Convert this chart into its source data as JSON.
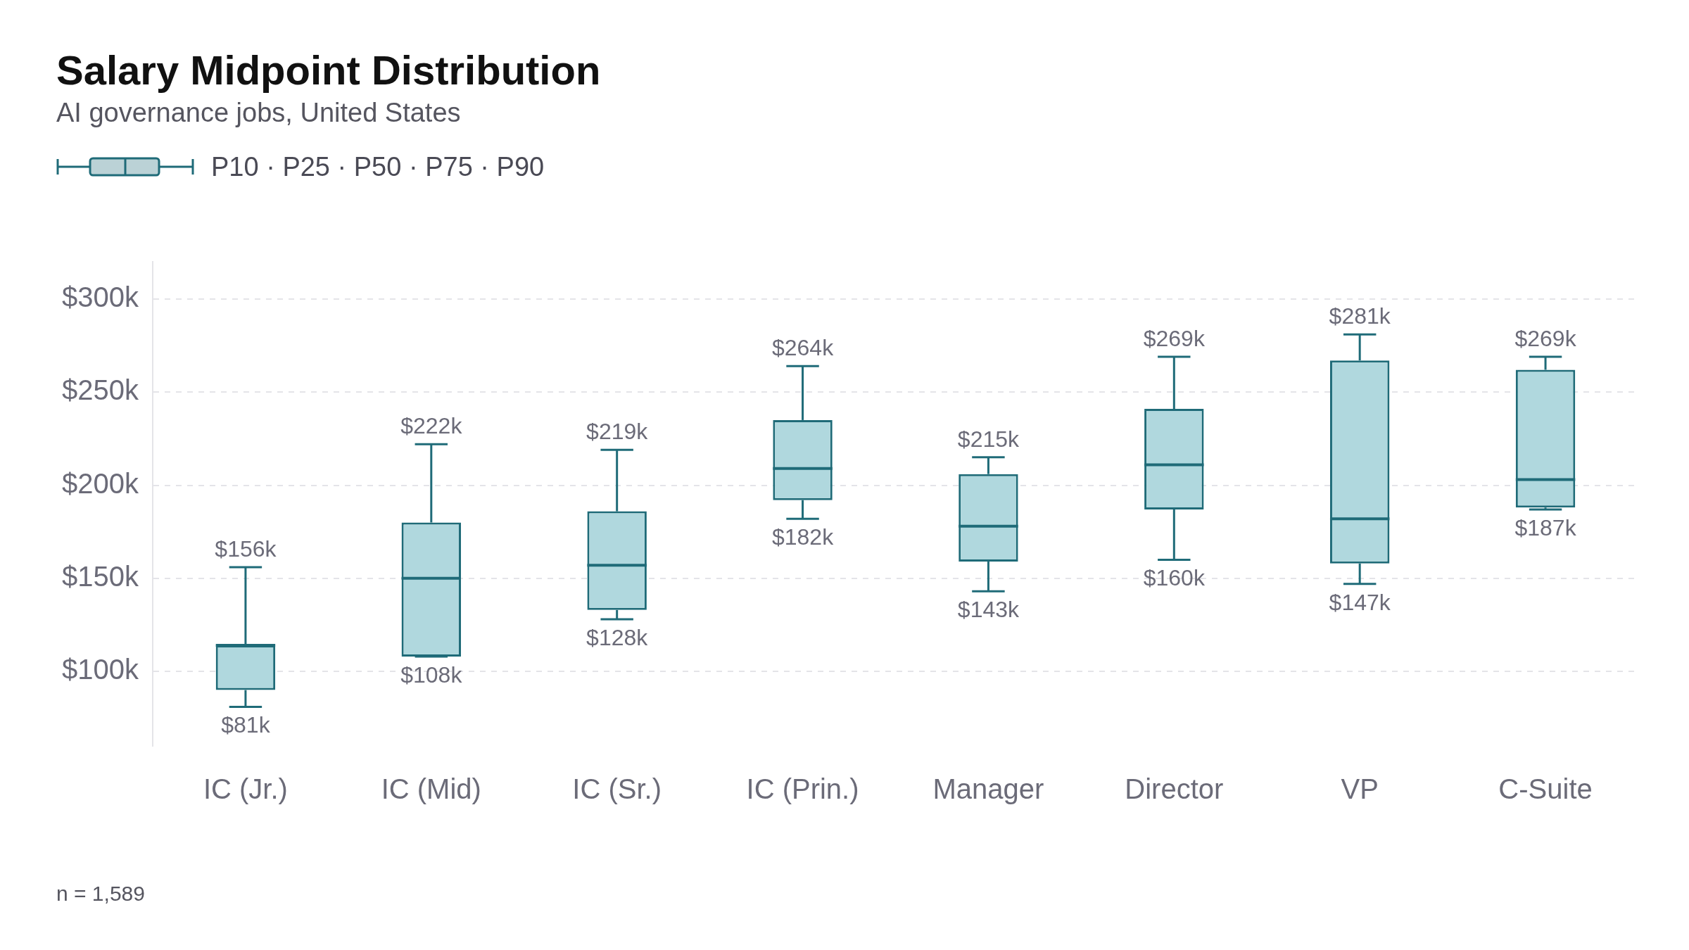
{
  "chart_data": {
    "type": "box",
    "title": "Salary Midpoint Distribution",
    "subtitle": "AI governance jobs, United States",
    "legend_title": "P10 · P25 · P50 · P75 · P90",
    "categories": [
      "IC (Jr.)",
      "IC (Mid)",
      "IC (Sr.)",
      "IC (Prin.)",
      "Manager",
      "Director",
      "VP",
      "C-Suite"
    ],
    "series": [
      {
        "color": "#1f6b78",
        "boxes": [
          {
            "low": 81,
            "q1": 90,
            "median": 114,
            "q3": 114,
            "high": 156
          },
          {
            "low": 108,
            "q1": 108,
            "median": 150,
            "q3": 180,
            "high": 222
          },
          {
            "low": 128,
            "q1": 133,
            "median": 157,
            "q3": 186,
            "high": 219
          },
          {
            "low": 182,
            "q1": 192,
            "median": 209,
            "q3": 235,
            "high": 264
          },
          {
            "low": 143,
            "q1": 159,
            "median": 178,
            "q3": 206,
            "high": 215
          },
          {
            "low": 160,
            "q1": 187,
            "median": 211,
            "q3": 241,
            "high": 269
          },
          {
            "low": 147,
            "q1": 158,
            "median": 182,
            "q3": 267,
            "high": 281
          },
          {
            "low": 187,
            "q1": 188,
            "median": 203,
            "q3": 262,
            "high": 269
          }
        ],
        "value_labels": [
          [
            "$81k",
            "$156k"
          ],
          [
            "$108k",
            "$222k"
          ],
          [
            "$128k",
            "$219k"
          ],
          [
            "$182k",
            "$264k"
          ],
          [
            "$143k",
            "$215k"
          ],
          [
            "$160k",
            "$269k"
          ],
          [
            "$147k",
            "$281k"
          ],
          [
            "$187k",
            "$269k"
          ]
        ]
      }
    ],
    "yticks": [
      {
        "value": 100,
        "label": "$100k"
      },
      {
        "value": 150,
        "label": "$150k"
      },
      {
        "value": 200,
        "label": "$200k"
      },
      {
        "value": 250,
        "label": "$250k"
      },
      {
        "value": 300,
        "label": "$300k"
      }
    ],
    "ylim": [
      60,
      320
    ],
    "grid": "y",
    "annotations": [
      "n = 1,589"
    ]
  }
}
